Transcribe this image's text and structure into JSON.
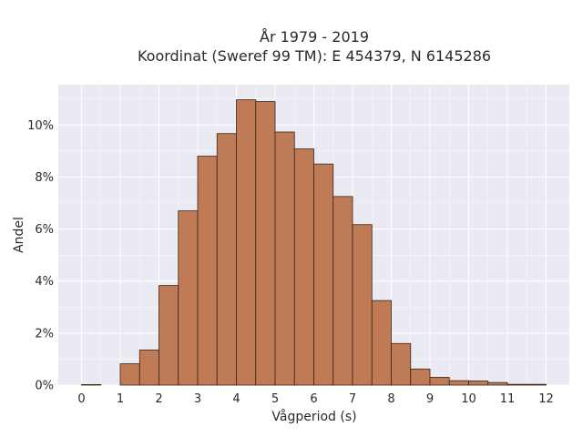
{
  "chart_data": {
    "type": "bar",
    "title_lines": [
      "År 1979 - 2019",
      "Koordinat (Sweref 99 TM): E 454379, N 6145286"
    ],
    "xlabel": "Vågperiod (s)",
    "ylabel": "Andel",
    "xlim": [
      -0.6,
      12.6
    ],
    "ylim": [
      0,
      0.1155
    ],
    "x_ticks": [
      0,
      1,
      2,
      3,
      4,
      5,
      6,
      7,
      8,
      9,
      10,
      11,
      12
    ],
    "y_ticks": [
      0,
      0.02,
      0.04,
      0.06,
      0.08,
      0.1
    ],
    "y_tick_labels": [
      "0%",
      "2%",
      "4%",
      "6%",
      "8%",
      "10%"
    ],
    "grid": true,
    "bin_width": 0.5,
    "bins": [
      {
        "x0": 0.0,
        "value": 0.0002
      },
      {
        "x0": 0.5,
        "value": 0.0
      },
      {
        "x0": 1.0,
        "value": 0.0082
      },
      {
        "x0": 1.5,
        "value": 0.0135
      },
      {
        "x0": 2.0,
        "value": 0.0383
      },
      {
        "x0": 2.5,
        "value": 0.067
      },
      {
        "x0": 3.0,
        "value": 0.088
      },
      {
        "x0": 3.5,
        "value": 0.0967
      },
      {
        "x0": 4.0,
        "value": 0.1097
      },
      {
        "x0": 4.5,
        "value": 0.109
      },
      {
        "x0": 5.0,
        "value": 0.0973
      },
      {
        "x0": 5.5,
        "value": 0.0908
      },
      {
        "x0": 6.0,
        "value": 0.085
      },
      {
        "x0": 6.5,
        "value": 0.0725
      },
      {
        "x0": 7.0,
        "value": 0.0617
      },
      {
        "x0": 7.5,
        "value": 0.0325
      },
      {
        "x0": 8.0,
        "value": 0.016
      },
      {
        "x0": 8.5,
        "value": 0.0062
      },
      {
        "x0": 9.0,
        "value": 0.003
      },
      {
        "x0": 9.5,
        "value": 0.0017
      },
      {
        "x0": 10.0,
        "value": 0.0016
      },
      {
        "x0": 10.5,
        "value": 0.001
      },
      {
        "x0": 11.0,
        "value": 0.0003
      },
      {
        "x0": 11.5,
        "value": 0.0003
      }
    ],
    "colors": {
      "bar_fill": "#bf7b56",
      "bar_edge": "#3d2418",
      "plot_background": "#eaeaf2",
      "grid": "#ffffff"
    }
  }
}
